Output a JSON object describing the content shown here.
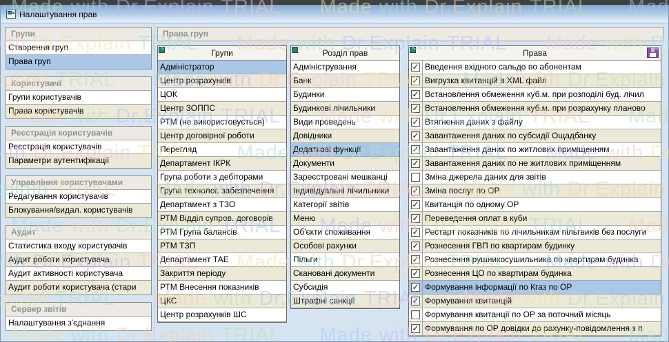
{
  "window": {
    "title": "Налаштування прав"
  },
  "watermark": {
    "text": "Made with Dr.Explain TRIAL",
    "colors": [
      "#b5e3b5",
      "#a8c9ef",
      "#c9b8ef",
      "#f2c6d0",
      "#ece5a5",
      "#abdcd4",
      "#f0cfae"
    ]
  },
  "icons": {
    "check_glyph": "✓",
    "save": "floppy-disk",
    "grid_corner": "grid-selector",
    "window_icon": "form-window"
  },
  "colors": {
    "selected_row": "#a9c7e6",
    "alt_row": "#ece9d8",
    "section_header_text": "#8f9390",
    "grid_corner_teal": "#2e8073",
    "save_icon_purple": "#8b52a8"
  },
  "sidebar": {
    "sections": [
      {
        "header": "Групи",
        "items": [
          {
            "label": "Створення груп"
          },
          {
            "label": "Права груп",
            "selected": true
          }
        ]
      },
      {
        "header": "Користувачі",
        "items": [
          {
            "label": "Групи користувачів"
          },
          {
            "label": "Права користувачів"
          }
        ]
      },
      {
        "header": "Реєстрація користувачів",
        "items": [
          {
            "label": "Реєстрація користувачів"
          },
          {
            "label": "Параметри аутентифікації"
          }
        ]
      },
      {
        "header": "Управління користувачами",
        "items": [
          {
            "label": "Редагування користувачів"
          },
          {
            "label": "Блокування/видал. користувачів"
          }
        ]
      },
      {
        "header": "Аудит",
        "items": [
          {
            "label": "Статистика входу користувачів"
          },
          {
            "label": "Аудит роботи користувача"
          },
          {
            "label": "Аудит активності користувача"
          },
          {
            "label": "Аудит роботи користувача (стари"
          }
        ]
      },
      {
        "header": "Сервер звітів",
        "items": [
          {
            "label": "Налаштування з'єднання"
          }
        ]
      }
    ]
  },
  "main": {
    "header": "Права груп",
    "groups_grid": {
      "header": "Групи",
      "selected_index": 0,
      "rows": [
        "Адміністратор",
        "Центр розрахунків",
        "ЦОК",
        "Центр ЗОППС",
        "РТМ (не використовується)",
        "Центр договірної роботи",
        "Перегляд",
        "Департамент ІКРК",
        "Група роботи з дебіторами",
        "Група технолог. забезпечення",
        "Департамент з ТЗО",
        "РТМ Відділ супров. договорів",
        "РТМ Група балансів",
        "РТМ ТЗП",
        "Департамент ТАЕ",
        "Закриття періоду",
        "РТМ Внесення показників",
        "ЦКС",
        "Центр розрахунків ШС"
      ]
    },
    "sections_grid": {
      "header": "Розділ прав",
      "selected_index": 6,
      "rows": [
        "Адміністрування",
        "Банк",
        "Будинки",
        "Будинкові лічильники",
        "Види проведень",
        "Довідники",
        "Додаткові функції",
        "Документи",
        "Зареєстровані мешканці",
        "Індивідуальні лічильники",
        "Категорії звітів",
        "Меню",
        "Об'єкти споживання",
        "Особові рахунки",
        "Пільги",
        "Скановані документи",
        "Субсидія",
        "Штрафні санкції"
      ]
    },
    "rights_grid": {
      "header": "Права",
      "selected_index": 16,
      "rows": [
        {
          "label": "Введення вхідного сальдо по абонентам",
          "checked": true
        },
        {
          "label": "Вигрузка квитанцій в XML файл",
          "checked": true
        },
        {
          "label": "Встановлення обмеження куб.м. при розподілі буд. лічил",
          "checked": true
        },
        {
          "label": "Встановлення обмеження куб.м. при розрахунку планово",
          "checked": true
        },
        {
          "label": "Втягнення даних з файлу",
          "checked": true
        },
        {
          "label": "Завантаження даних по субсидії Ощадбанку",
          "checked": true
        },
        {
          "label": "Завантаження даних по житлових приміщенням",
          "checked": true
        },
        {
          "label": "Завантаження даних по не житлових приміщенням",
          "checked": true
        },
        {
          "label": "Зміна джерела даних для звітів",
          "checked": false
        },
        {
          "label": "Зміна послуг по ОР",
          "checked": true
        },
        {
          "label": "Квитанція по одному ОР",
          "checked": true
        },
        {
          "label": "Переведення оплат в куби",
          "checked": true
        },
        {
          "label": "Рестарт показників по лічильникам пільгвиків без послуги",
          "checked": true
        },
        {
          "label": "Рознесення ГВП по квартирам будинку",
          "checked": true
        },
        {
          "label": "Рознесення рушникосушильника по квартирам будинка",
          "checked": true
        },
        {
          "label": "Рознесення ЦО по квартирам будинка",
          "checked": true
        },
        {
          "label": "Формування інформації по Кгаз по ОР",
          "checked": true
        },
        {
          "label": "Формування квитанцій",
          "checked": true
        },
        {
          "label": "Формування квитанції по ОР за поточний місяць",
          "checked": false
        },
        {
          "label": "Формування по ОР довідки до рахунку-повідомлення з п",
          "checked": true
        }
      ]
    }
  }
}
